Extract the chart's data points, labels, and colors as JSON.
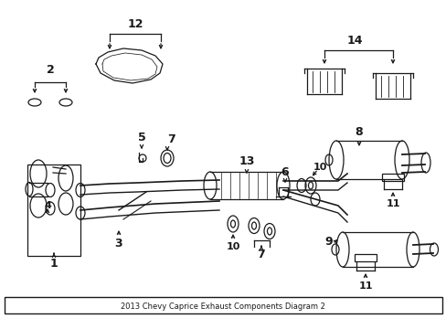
{
  "title": "2013 Chevy Caprice Exhaust Components Diagram 2",
  "bg_color": "#ffffff",
  "line_color": "#1a1a1a",
  "fig_width": 4.89,
  "fig_height": 3.6,
  "dpi": 100
}
